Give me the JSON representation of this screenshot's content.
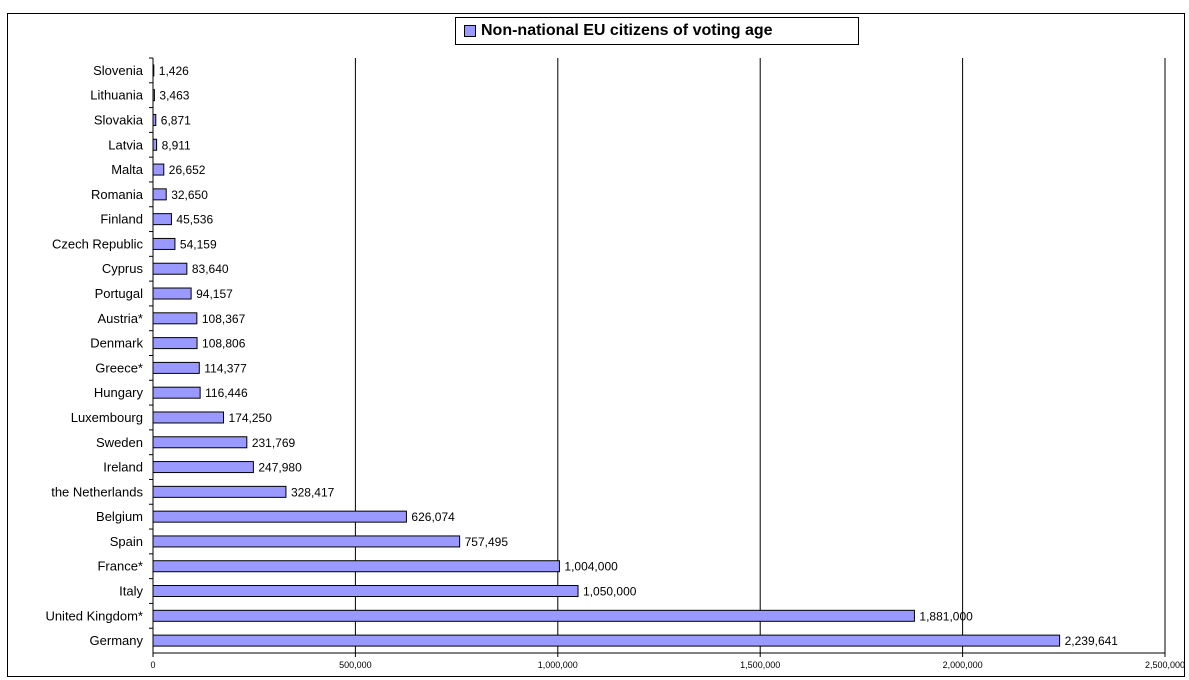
{
  "chart_data": {
    "type": "bar",
    "orientation": "horizontal",
    "legend": {
      "label": "Non-national EU citizens of voting age",
      "position": "top"
    },
    "color": "#9999ff",
    "categories": [
      "Slovenia",
      "Lithuania",
      "Slovakia",
      "Latvia",
      "Malta",
      "Romania",
      "Finland",
      "Czech Republic",
      "Cyprus",
      "Portugal",
      "Austria*",
      "Denmark",
      "Greece*",
      "Hungary",
      "Luxembourg",
      "Sweden",
      "Ireland",
      "the Netherlands",
      "Belgium",
      "Spain",
      "France*",
      "Italy",
      "United Kingdom*",
      "Germany"
    ],
    "values": [
      1426,
      3463,
      6871,
      8911,
      26652,
      32650,
      45536,
      54159,
      83640,
      94157,
      108367,
      108806,
      114377,
      116446,
      174250,
      231769,
      247980,
      328417,
      626074,
      757495,
      1004000,
      1050000,
      1881000,
      2239641
    ],
    "value_labels": [
      "1,426",
      "3,463",
      "6,871",
      "8,911",
      "26,652",
      "32,650",
      "45,536",
      "54,159",
      "83,640",
      "94,157",
      "108,367",
      "108,806",
      "114,377",
      "116,446",
      "174,250",
      "231,769",
      "247,980",
      "328,417",
      "626,074",
      "757,495",
      "1,004,000",
      "1,050,000",
      "1,881,000",
      "2,239,641"
    ],
    "xlim": [
      0,
      2500000
    ],
    "xticks": [
      0,
      500000,
      1000000,
      1500000,
      2000000,
      2500000
    ],
    "xtick_labels": [
      "0",
      "500,000",
      "1,000,000",
      "1,500,000",
      "2,000,000",
      "2,500,000"
    ],
    "grid": true
  }
}
